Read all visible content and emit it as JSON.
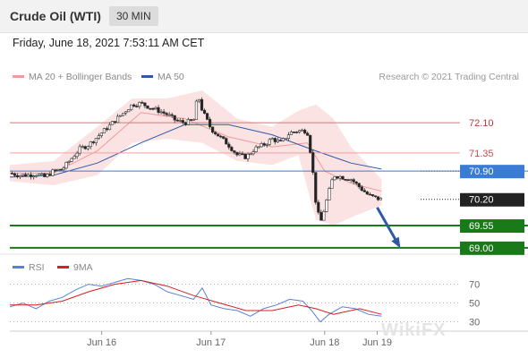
{
  "header": {
    "instrument": "Crude Oil (WTI)",
    "interval": "30 MIN"
  },
  "timestamp": "Friday, June 18, 2021 7:53:11 AM CET",
  "legend": {
    "ma20": {
      "label": "MA 20 + Bollinger Bands",
      "color": "#f29a9a"
    },
    "ma50": {
      "label": "MA 50",
      "color": "#2d5aa8"
    }
  },
  "credit": "Research © 2021 Trading Central",
  "rsi_legend": {
    "rsi": {
      "label": "RSI",
      "color": "#5b7fd6"
    },
    "ma9": {
      "label": "9MA",
      "color": "#d32020"
    }
  },
  "watermark": "WikiFX",
  "chart_data": [
    {
      "type": "candlestick",
      "ylim": [
        68.93,
        73.1
      ],
      "x_range": [
        0,
        100
      ],
      "x_ticks": [
        {
          "label": "Jun 16",
          "x": 21
        },
        {
          "label": "Jun 17",
          "x": 46
        },
        {
          "label": "Jun 18",
          "x": 72
        },
        {
          "label": "Jun 19",
          "x": 84
        }
      ],
      "levels": [
        {
          "label": "72.10",
          "value": 72.1,
          "color": "#c87d7d",
          "style": "thin",
          "tag": "text"
        },
        {
          "label": "71.35",
          "value": 71.35,
          "color": "#f0a0a0",
          "style": "thin",
          "tag": "text"
        },
        {
          "label": "70.90",
          "value": 70.9,
          "color": "#3a7bd5",
          "style": "thin",
          "tag": "box"
        },
        {
          "label": "70.20",
          "value": 70.2,
          "color": "#222222",
          "style": "dotted",
          "tag": "box"
        },
        {
          "label": "69.55",
          "value": 69.55,
          "color": "#1a7a1a",
          "style": "thick",
          "tag": "box"
        },
        {
          "label": "69.00",
          "value": 69.0,
          "color": "#1a7a1a",
          "style": "thick",
          "tag": "box"
        }
      ],
      "close_path": [
        [
          0,
          70.85
        ],
        [
          2,
          70.8
        ],
        [
          4,
          70.8
        ],
        [
          6,
          70.83
        ],
        [
          8,
          70.75
        ],
        [
          10,
          70.9
        ],
        [
          12,
          70.95
        ],
        [
          14,
          71.2
        ],
        [
          16,
          71.45
        ],
        [
          18,
          71.55
        ],
        [
          20,
          71.75
        ],
        [
          22,
          71.95
        ],
        [
          24,
          72.15
        ],
        [
          26,
          72.35
        ],
        [
          28,
          72.55
        ],
        [
          30,
          72.58
        ],
        [
          32,
          72.48
        ],
        [
          34,
          72.4
        ],
        [
          36,
          72.3
        ],
        [
          38,
          72.15
        ],
        [
          40,
          72.1
        ],
        [
          42,
          72.15
        ],
        [
          43,
          72.8
        ],
        [
          44,
          72.4
        ],
        [
          46,
          71.95
        ],
        [
          48,
          71.75
        ],
        [
          50,
          71.55
        ],
        [
          52,
          71.3
        ],
        [
          54,
          71.25
        ],
        [
          56,
          71.45
        ],
        [
          58,
          71.55
        ],
        [
          60,
          71.7
        ],
        [
          62,
          71.6
        ],
        [
          64,
          71.85
        ],
        [
          66,
          71.9
        ],
        [
          68,
          71.9
        ],
        [
          69,
          71.2
        ],
        [
          70,
          70.1
        ],
        [
          71,
          69.6
        ],
        [
          72,
          70.0
        ],
        [
          73,
          70.4
        ],
        [
          74,
          70.8
        ],
        [
          76,
          70.75
        ],
        [
          78,
          70.7
        ],
        [
          80,
          70.5
        ],
        [
          82,
          70.3
        ],
        [
          84,
          70.22
        ],
        [
          85,
          70.2
        ]
      ],
      "ma50": [
        [
          0,
          70.75
        ],
        [
          10,
          70.8
        ],
        [
          20,
          71.1
        ],
        [
          30,
          71.6
        ],
        [
          40,
          72.05
        ],
        [
          50,
          72.05
        ],
        [
          60,
          71.8
        ],
        [
          70,
          71.4
        ],
        [
          78,
          71.1
        ],
        [
          85,
          70.95
        ]
      ],
      "ma20": [
        [
          0,
          70.85
        ],
        [
          10,
          70.85
        ],
        [
          20,
          71.4
        ],
        [
          30,
          72.35
        ],
        [
          40,
          72.2
        ],
        [
          50,
          71.75
        ],
        [
          60,
          71.5
        ],
        [
          68,
          71.6
        ],
        [
          72,
          70.9
        ],
        [
          78,
          70.6
        ],
        [
          85,
          70.4
        ]
      ],
      "bollinger_upper": [
        [
          0,
          71.05
        ],
        [
          10,
          71.15
        ],
        [
          20,
          72.0
        ],
        [
          28,
          72.7
        ],
        [
          36,
          72.7
        ],
        [
          44,
          72.9
        ],
        [
          52,
          72.2
        ],
        [
          60,
          72.0
        ],
        [
          66,
          72.4
        ],
        [
          70,
          72.55
        ],
        [
          74,
          72.2
        ],
        [
          78,
          71.5
        ],
        [
          85,
          70.7
        ]
      ],
      "bollinger_lower": [
        [
          0,
          70.65
        ],
        [
          10,
          70.55
        ],
        [
          20,
          70.8
        ],
        [
          28,
          71.6
        ],
        [
          36,
          71.7
        ],
        [
          44,
          71.6
        ],
        [
          52,
          71.15
        ],
        [
          60,
          71.05
        ],
        [
          66,
          71.3
        ],
        [
          70,
          69.7
        ],
        [
          74,
          69.55
        ],
        [
          78,
          69.75
        ],
        [
          85,
          70.05
        ]
      ],
      "forecast_arrow": {
        "from": [
          84,
          70.0
        ],
        "to": [
          89,
          69.05
        ],
        "color": "#2d5aa8"
      }
    },
    {
      "type": "line",
      "title": "RSI",
      "ylim": [
        22,
        82
      ],
      "y_ticks": [
        70,
        50,
        30
      ],
      "series": [
        {
          "name": "RSI",
          "color": "#5b7fd6",
          "points": [
            [
              0,
              46
            ],
            [
              3,
              50
            ],
            [
              6,
              44
            ],
            [
              9,
              52
            ],
            [
              12,
              56
            ],
            [
              15,
              64
            ],
            [
              18,
              70
            ],
            [
              21,
              68
            ],
            [
              24,
              72
            ],
            [
              27,
              76
            ],
            [
              30,
              74
            ],
            [
              33,
              70
            ],
            [
              36,
              62
            ],
            [
              39,
              58
            ],
            [
              42,
              54
            ],
            [
              44,
              66
            ],
            [
              46,
              48
            ],
            [
              49,
              44
            ],
            [
              52,
              42
            ],
            [
              55,
              36
            ],
            [
              58,
              44
            ],
            [
              61,
              48
            ],
            [
              64,
              54
            ],
            [
              67,
              52
            ],
            [
              69,
              42
            ],
            [
              71,
              30
            ],
            [
              73,
              38
            ],
            [
              76,
              46
            ],
            [
              79,
              44
            ],
            [
              82,
              38
            ],
            [
              85,
              36
            ]
          ]
        },
        {
          "name": "9MA",
          "color": "#d32020",
          "points": [
            [
              0,
              48
            ],
            [
              6,
              48
            ],
            [
              12,
              52
            ],
            [
              18,
              62
            ],
            [
              24,
              70
            ],
            [
              30,
              74
            ],
            [
              36,
              68
            ],
            [
              42,
              58
            ],
            [
              48,
              50
            ],
            [
              54,
              42
            ],
            [
              60,
              42
            ],
            [
              66,
              48
            ],
            [
              70,
              44
            ],
            [
              74,
              38
            ],
            [
              80,
              44
            ],
            [
              85,
              38
            ]
          ]
        }
      ]
    }
  ]
}
